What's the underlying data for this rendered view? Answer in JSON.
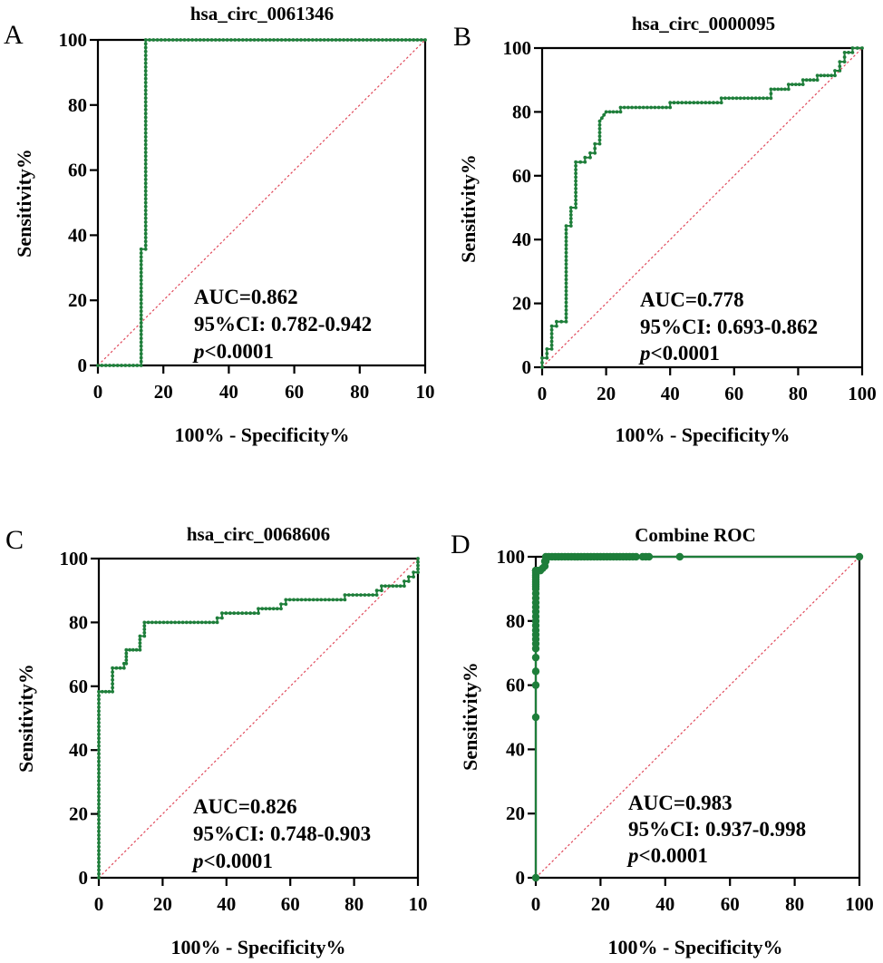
{
  "figure": {
    "panels": [
      "A",
      "B",
      "C",
      "D"
    ]
  },
  "chart_data": [
    {
      "panel": "A",
      "type": "line",
      "title": "hsa_circ_0061346",
      "xlabel": "100% - Specificity%",
      "ylabel": "Sensitivity%",
      "xlim": [
        0,
        100
      ],
      "ylim": [
        0,
        100
      ],
      "xticks": [
        "0",
        "20",
        "40",
        "60",
        "80",
        "10"
      ],
      "yticks": [
        "0",
        "20",
        "40",
        "60",
        "80",
        "100"
      ],
      "reference_line": "diagonal",
      "curve_color": "#1e7e3a",
      "reference_color": "#e0485a",
      "marker": "small-dot",
      "auc_text": "AUC=0.862",
      "ci_text": "95%CI: 0.782-0.942",
      "p_label": "p",
      "p_text": "<0.0001",
      "x": [
        0,
        13.2,
        13.2,
        14.6,
        14.6,
        100
      ],
      "y": [
        0,
        0,
        35.7,
        35.7,
        100,
        100
      ]
    },
    {
      "panel": "B",
      "type": "line",
      "title": "hsa_circ_0000095",
      "xlabel": "100% - Specificity%",
      "ylabel": "Sensitivity%",
      "xlim": [
        0,
        100
      ],
      "ylim": [
        0,
        100
      ],
      "xticks": [
        "0",
        "20",
        "40",
        "60",
        "80",
        "100"
      ],
      "yticks": [
        "0",
        "20",
        "40",
        "60",
        "80",
        "100"
      ],
      "reference_line": "diagonal",
      "curve_color": "#1e7e3a",
      "reference_color": "#e0485a",
      "marker": "small-dot",
      "auc_text": "AUC=0.778",
      "ci_text": "95%CI: 0.693-0.862",
      "p_label": "p",
      "p_text": "<0.0001",
      "x": [
        0,
        0,
        1.5,
        1.5,
        3,
        3,
        4.5,
        4.5,
        7.5,
        7.5,
        9,
        9,
        10.5,
        10.5,
        13.4,
        13.4,
        15,
        15,
        16.5,
        16.5,
        18,
        18,
        20,
        24.5,
        24.5,
        40,
        40,
        56,
        56,
        71.5,
        71.5,
        77,
        77,
        81.5,
        81.5,
        86,
        86,
        91.5,
        91.5,
        93,
        93,
        94.5,
        94.5,
        97,
        97,
        100
      ],
      "y": [
        0,
        2.9,
        2.9,
        5.7,
        5.7,
        12.9,
        12.9,
        14.3,
        14.3,
        44.3,
        44.3,
        50,
        50,
        64.3,
        64.3,
        65.7,
        65.7,
        67.1,
        67.1,
        70,
        70,
        77.1,
        80,
        80,
        81.4,
        81.4,
        82.9,
        82.9,
        84.3,
        84.3,
        87.1,
        87.1,
        88.6,
        88.6,
        90,
        90,
        91.4,
        91.4,
        92.9,
        92.9,
        95.7,
        95.7,
        98.6,
        98.6,
        100,
        100
      ]
    },
    {
      "panel": "C",
      "type": "line",
      "title": "hsa_circ_0068606",
      "xlabel": "100% - Specificity%",
      "ylabel": "Sensitivity%",
      "xlim": [
        0,
        100
      ],
      "ylim": [
        0,
        100
      ],
      "xticks": [
        "0",
        "20",
        "40",
        "60",
        "80",
        "10"
      ],
      "yticks": [
        "0",
        "20",
        "40",
        "60",
        "80",
        "100"
      ],
      "reference_line": "diagonal",
      "curve_color": "#1e7e3a",
      "reference_color": "#e0485a",
      "marker": "small-dot",
      "auc_text": "AUC=0.826",
      "ci_text": "95%CI: 0.748-0.903",
      "p_label": "p",
      "p_text": "<0.0001",
      "x": [
        0,
        0,
        4.3,
        4.3,
        7.9,
        7.9,
        8.6,
        8.6,
        12.9,
        12.9,
        14.3,
        14.3,
        37.1,
        37.1,
        38.6,
        38.6,
        50,
        50,
        57.1,
        57.1,
        58.6,
        58.6,
        77.1,
        77.1,
        87.1,
        87.1,
        88.6,
        88.6,
        95.7,
        95.7,
        97.1,
        97.1,
        98.6,
        98.6,
        100,
        100
      ],
      "y": [
        0,
        58.3,
        58.3,
        65.7,
        65.7,
        67.1,
        67.1,
        71.4,
        71.4,
        75.7,
        75.7,
        80,
        80,
        81.4,
        81.4,
        82.9,
        82.9,
        84.3,
        84.3,
        85.7,
        85.7,
        87.1,
        87.1,
        88.6,
        88.6,
        90,
        90,
        91.4,
        91.4,
        92.9,
        92.9,
        94.3,
        94.3,
        95.7,
        95.7,
        100
      ]
    },
    {
      "panel": "D",
      "type": "line",
      "title": "Combine ROC",
      "xlabel": "100% - Specificity%",
      "ylabel": "Sensitivity%",
      "xlim": [
        0,
        100
      ],
      "ylim": [
        0,
        100
      ],
      "xticks": [
        "0",
        "20",
        "40",
        "60",
        "80",
        "100"
      ],
      "yticks": [
        "0",
        "20",
        "40",
        "60",
        "80",
        "100"
      ],
      "reference_line": "diagonal",
      "curve_color": "#1e7e3a",
      "reference_color": "#e0485a",
      "marker": "large-dot",
      "auc_text": "AUC=0.983",
      "ci_text": "95%CI: 0.937-0.998",
      "p_label": "p",
      "p_text": "<0.0001",
      "x": [
        0,
        0,
        0,
        0,
        0,
        0,
        0,
        0,
        0,
        0,
        0,
        0,
        0,
        0,
        0,
        0,
        0,
        0,
        0,
        0,
        0,
        0,
        0,
        0,
        0,
        0,
        0,
        0,
        0,
        0.7,
        1.4,
        2.1,
        2.8,
        2.8,
        3.1,
        3.1,
        4,
        5,
        6,
        7,
        8,
        9,
        10,
        11,
        12,
        13,
        14,
        15,
        16,
        17,
        18,
        19,
        20,
        21,
        22,
        23,
        24,
        25,
        26,
        27,
        28,
        29,
        30,
        31,
        33,
        34,
        35,
        44.5,
        100
      ],
      "y": [
        0,
        50,
        60,
        64.3,
        68.6,
        71.4,
        72.9,
        74.3,
        75.7,
        77.1,
        78.6,
        80,
        81.4,
        82.9,
        84.3,
        85.7,
        87.1,
        88.6,
        90,
        90.7,
        91.4,
        92.1,
        92.9,
        93.6,
        94.3,
        95,
        95.7,
        95.7,
        95.7,
        95.7,
        95.7,
        96.4,
        97.1,
        98.6,
        98.6,
        100,
        100,
        100,
        100,
        100,
        100,
        100,
        100,
        100,
        100,
        100,
        100,
        100,
        100,
        100,
        100,
        100,
        100,
        100,
        100,
        100,
        100,
        100,
        100,
        100,
        100,
        100,
        100,
        100,
        100,
        100,
        100,
        100,
        100
      ]
    }
  ]
}
